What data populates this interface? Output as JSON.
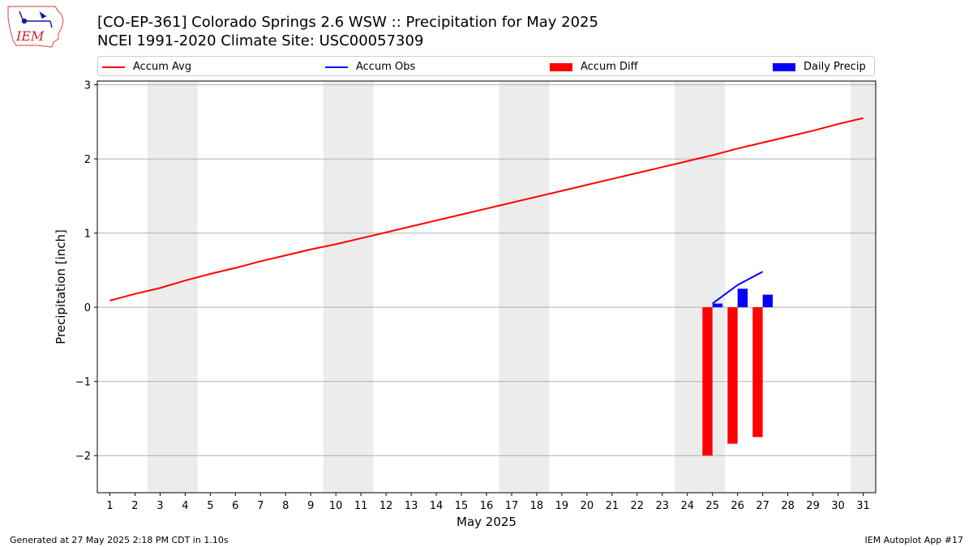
{
  "header": {
    "logo_text": "IEM",
    "title_line1": "[CO-EP-361] Colorado Springs 2.6 WSW :: Precipitation for May 2025",
    "title_line2": "NCEI 1991-2020 Climate Site: USC00057309"
  },
  "legend": [
    {
      "label": "Accum Avg",
      "kind": "line",
      "color": "#ff0000"
    },
    {
      "label": "Accum Obs",
      "kind": "line",
      "color": "#0000ff"
    },
    {
      "label": "Accum Diff",
      "kind": "patch",
      "color": "#ff0000"
    },
    {
      "label": "Daily Precip",
      "kind": "patch",
      "color": "#0000ff"
    }
  ],
  "footer": {
    "left": "Generated at 27 May 2025 2:18 PM CDT in 1.10s",
    "right": "IEM Autoplot App #17"
  },
  "chart_data": {
    "type": "bar",
    "title": "[CO-EP-361] Colorado Springs 2.6 WSW :: Precipitation for May 2025",
    "xlabel": "May 2025",
    "ylabel": "Precipitation [inch]",
    "x": [
      1,
      2,
      3,
      4,
      5,
      6,
      7,
      8,
      9,
      10,
      11,
      12,
      13,
      14,
      15,
      16,
      17,
      18,
      19,
      20,
      21,
      22,
      23,
      24,
      25,
      26,
      27,
      28,
      29,
      30,
      31
    ],
    "xlim": [
      0.5,
      31.5
    ],
    "ylim": [
      -2.5,
      3.05
    ],
    "yticks": [
      -2,
      -1,
      0,
      1,
      2,
      3
    ],
    "ytick_labels": [
      "−2",
      "−1",
      "0",
      "1",
      "2",
      "3"
    ],
    "grid": "horizontal",
    "weekend_bands": [
      [
        2.5,
        4.5
      ],
      [
        9.5,
        11.5
      ],
      [
        16.5,
        18.5
      ],
      [
        23.5,
        25.5
      ],
      [
        30.5,
        31.5
      ]
    ],
    "series": [
      {
        "name": "Accum Avg",
        "type": "line",
        "color": "#ff0000",
        "x": [
          1,
          2,
          3,
          4,
          5,
          6,
          7,
          8,
          9,
          10,
          11,
          12,
          13,
          14,
          15,
          16,
          17,
          18,
          19,
          20,
          21,
          22,
          23,
          24,
          25,
          26,
          27,
          28,
          29,
          30,
          31
        ],
        "values": [
          0.09,
          0.18,
          0.26,
          0.36,
          0.45,
          0.53,
          0.62,
          0.7,
          0.78,
          0.85,
          0.93,
          1.01,
          1.09,
          1.17,
          1.25,
          1.33,
          1.41,
          1.49,
          1.57,
          1.65,
          1.73,
          1.81,
          1.89,
          1.97,
          2.05,
          2.14,
          2.22,
          2.3,
          2.38,
          2.47,
          2.55
        ]
      },
      {
        "name": "Accum Obs",
        "type": "line",
        "color": "#0000ff",
        "x": [
          25,
          26,
          27
        ],
        "values": [
          0.05,
          0.3,
          0.48
        ]
      },
      {
        "name": "Accum Diff",
        "type": "bar",
        "color": "#ff0000",
        "x": [
          25,
          26,
          27
        ],
        "values": [
          -2.0,
          -1.84,
          -1.75
        ]
      },
      {
        "name": "Daily Precip",
        "type": "bar",
        "color": "#0000ff",
        "x": [
          25,
          26,
          27
        ],
        "values": [
          0.05,
          0.25,
          0.17
        ]
      }
    ]
  }
}
